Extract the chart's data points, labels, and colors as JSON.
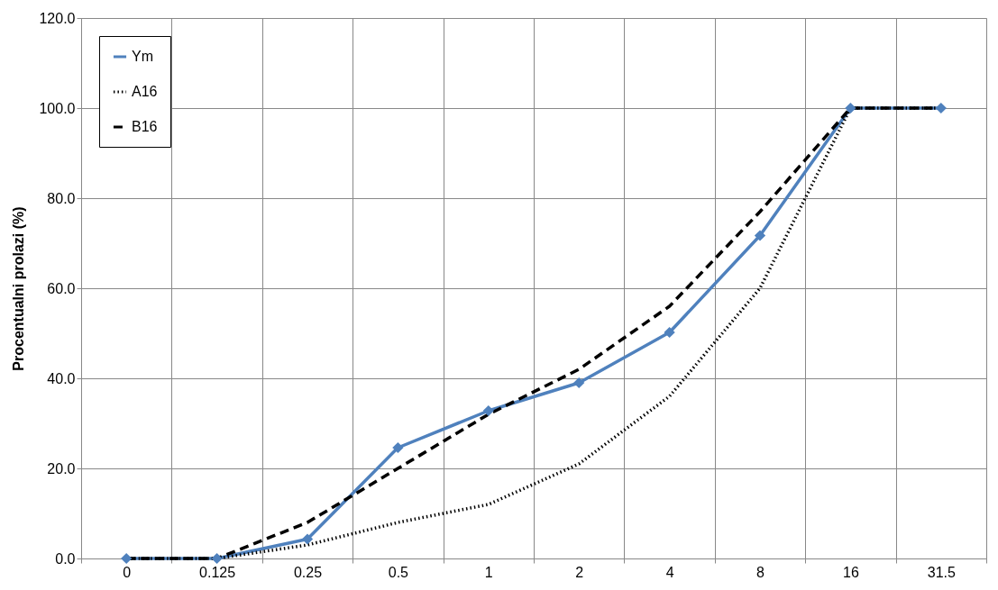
{
  "chart_data": {
    "type": "line",
    "ylabel": "Procentualni prolazi (%)",
    "categories": [
      "0",
      "0.125",
      "0.25",
      "0.5",
      "1",
      "2",
      "4",
      "8",
      "16",
      "31.5"
    ],
    "series": [
      {
        "name": "Ym",
        "color": "#4f81bd",
        "marker": "diamond",
        "line_style": "solid",
        "values": [
          0,
          0,
          4.3,
          24.6,
          32.8,
          39.0,
          50.2,
          71.7,
          100,
          100
        ]
      },
      {
        "name": "A16",
        "color": "#000000",
        "marker": "none",
        "line_style": "dotted",
        "values": [
          0,
          0,
          3,
          8,
          12,
          21,
          36,
          60,
          100,
          100
        ]
      },
      {
        "name": "B16",
        "color": "#000000",
        "marker": "none",
        "line_style": "dashed",
        "values": [
          0,
          0,
          8,
          20,
          32,
          42,
          56,
          77,
          100,
          100
        ]
      }
    ],
    "ylim": [
      0,
      120
    ],
    "yticks": [
      {
        "value": 0,
        "label": "0.0"
      },
      {
        "value": 20,
        "label": "20.0"
      },
      {
        "value": 40,
        "label": "40.0"
      },
      {
        "value": 60,
        "label": "60.0"
      },
      {
        "value": 80,
        "label": "80.0"
      },
      {
        "value": 100,
        "label": "100.0"
      },
      {
        "value": 120,
        "label": "120.0"
      }
    ],
    "grid": true,
    "legend": "top left"
  }
}
